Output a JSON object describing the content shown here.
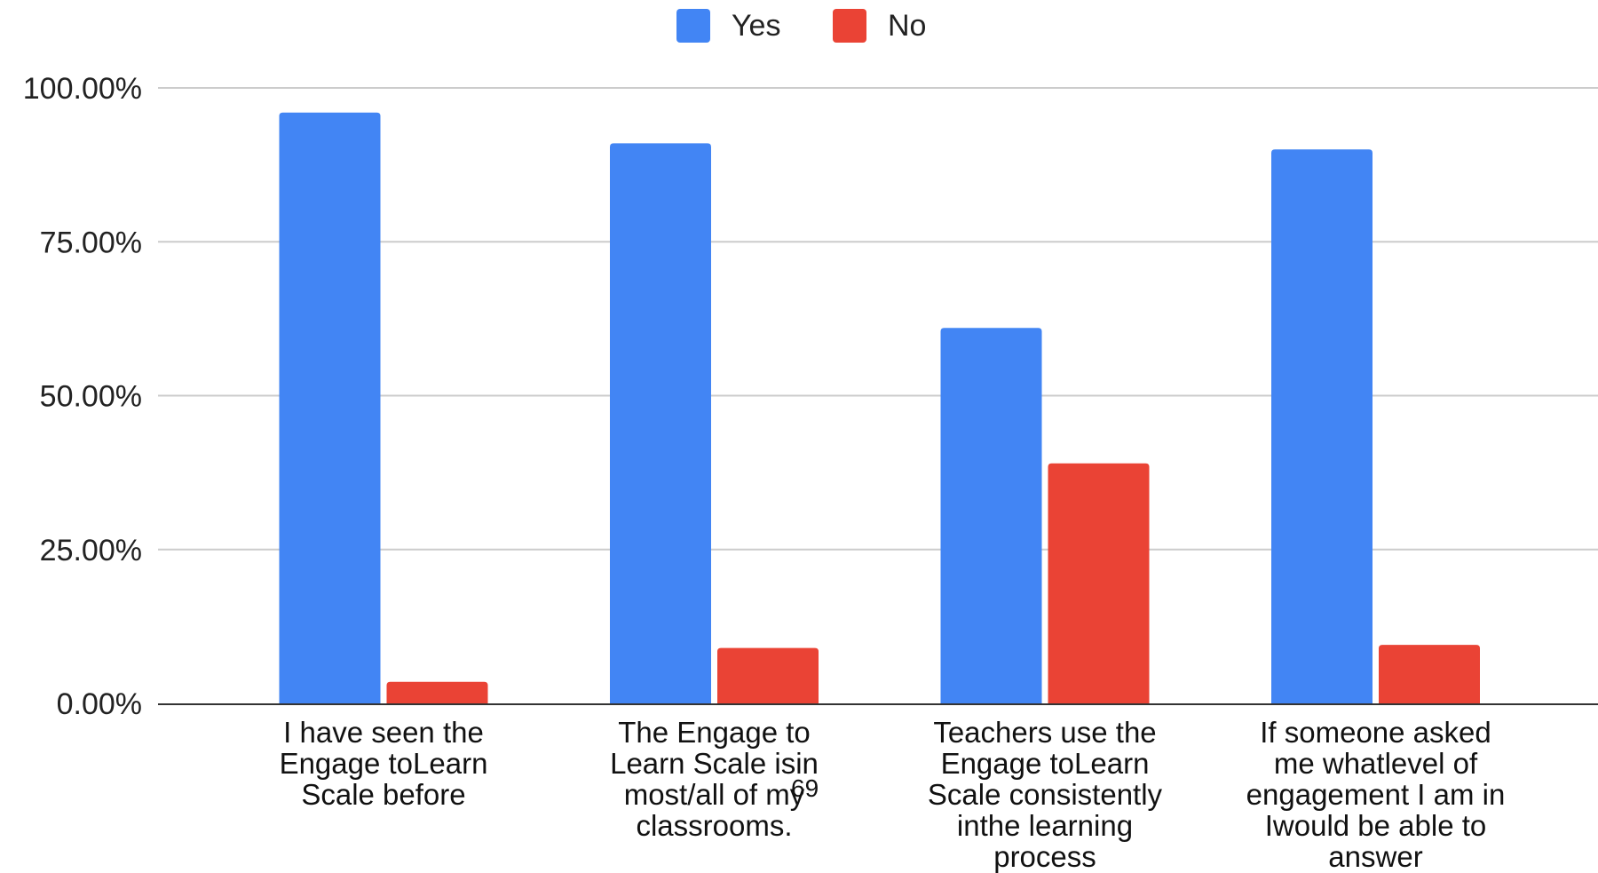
{
  "chart_data": {
    "type": "bar",
    "categories": [
      [
        "I have seen the",
        "Engage toLearn",
        "Scale before"
      ],
      [
        "The Engage to",
        "Learn Scale isin",
        "most/all of my",
        "classrooms."
      ],
      [
        "Teachers use the",
        "Engage toLearn",
        "Scale consistently",
        "inthe learning",
        "process"
      ],
      [
        "If someone asked",
        "me whatlevel of",
        "engagement I am in",
        "Iwould be able to",
        "answer"
      ]
    ],
    "series": [
      {
        "name": "Yes",
        "color": "#4285f4",
        "values": [
          96.0,
          91.0,
          61.0,
          90.0
        ]
      },
      {
        "name": "No",
        "color": "#ea4335",
        "values": [
          3.5,
          9.0,
          39.0,
          9.5
        ]
      }
    ],
    "yticks": [
      "0.00%",
      "25.00%",
      "50.00%",
      "75.00%",
      "100.00%"
    ],
    "ylim": [
      0,
      100
    ],
    "grid": true,
    "legend_position": "top-center"
  },
  "page_number": "69"
}
